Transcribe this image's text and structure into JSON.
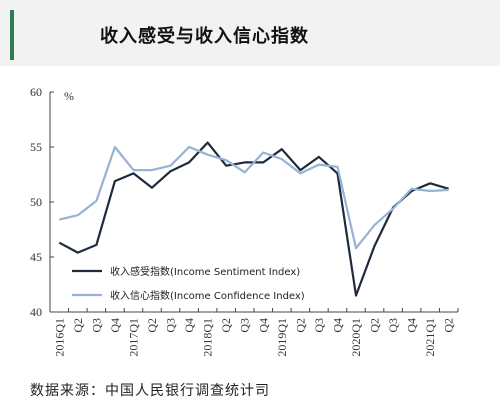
{
  "title": "收入感受与收入信心指数",
  "source": "数据来源：中国人民银行调查统计司",
  "chart_data": {
    "type": "line",
    "unit": "%",
    "ylim": [
      40,
      60
    ],
    "yticks": [
      40,
      45,
      50,
      55,
      60
    ],
    "x": [
      "2016Q1",
      "Q2",
      "Q3",
      "Q4",
      "2017Q1",
      "Q2",
      "Q3",
      "Q4",
      "2018Q1",
      "Q2",
      "Q3",
      "Q4",
      "2019Q1",
      "Q2",
      "Q3",
      "Q4",
      "2020Q1",
      "Q2",
      "Q3",
      "Q4",
      "2021Q1",
      "Q2"
    ],
    "grid": false,
    "legend_position": "lower-left",
    "series": [
      {
        "name": "收入感受指数(Income Sentiment Index)",
        "color": "#1f2b3c",
        "values": [
          46.3,
          45.4,
          46.1,
          51.9,
          52.6,
          51.3,
          52.8,
          53.6,
          55.4,
          53.3,
          53.6,
          53.6,
          54.8,
          52.9,
          54.1,
          52.6,
          41.5,
          46.0,
          49.5,
          51.0,
          51.7,
          51.2
        ]
      },
      {
        "name": "收入信心指数(Income Confidence Index)",
        "color": "#97b2d4",
        "values": [
          48.4,
          48.8,
          50.1,
          55.0,
          52.9,
          52.9,
          53.3,
          55.0,
          54.3,
          53.8,
          52.7,
          54.5,
          53.9,
          52.6,
          53.4,
          53.2,
          45.8,
          47.9,
          49.4,
          51.2,
          51.0,
          51.1
        ]
      }
    ]
  }
}
